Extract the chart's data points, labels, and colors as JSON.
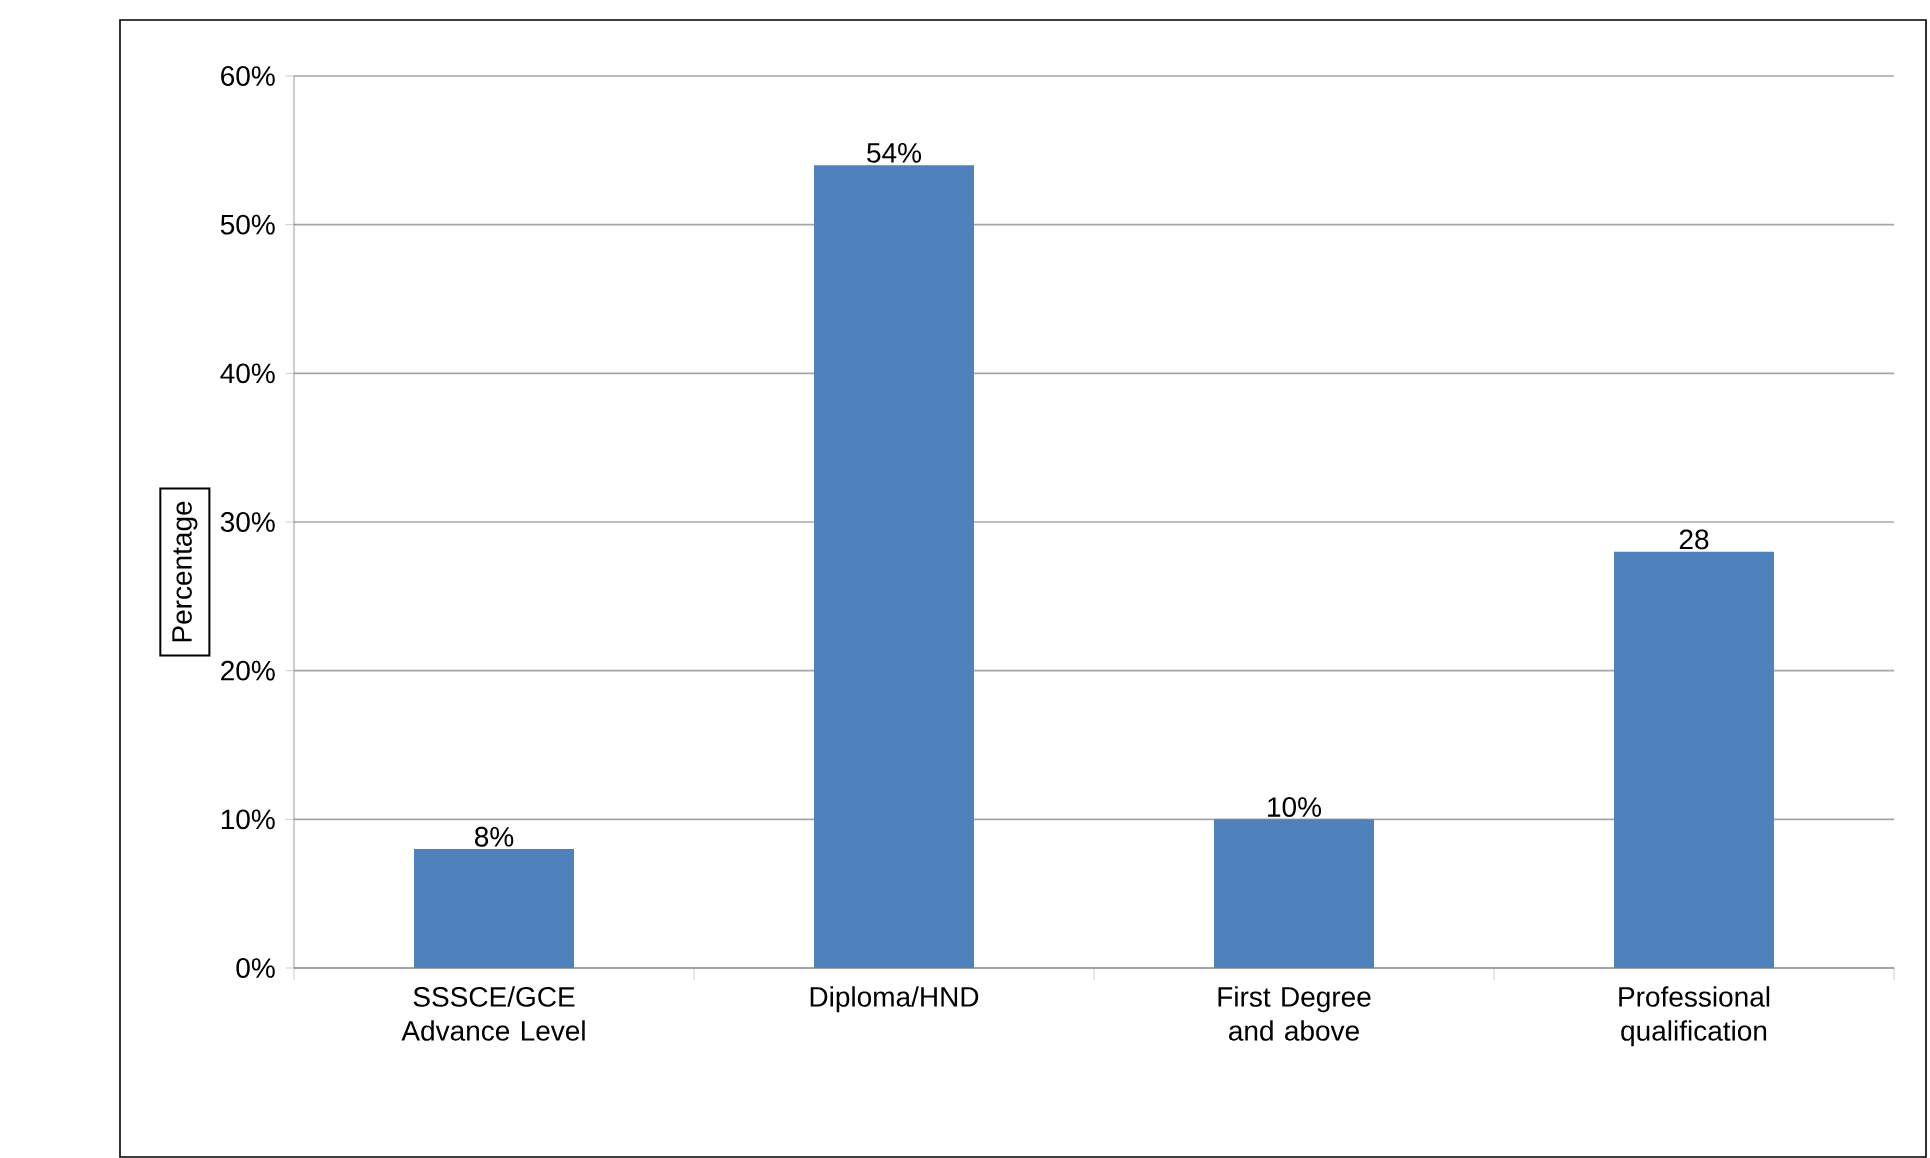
{
  "chart_data": {
    "type": "bar",
    "ylabel": "Percentage",
    "categories": [
      "SSSCE/GCE Advance Level",
      "Diploma/HND",
      "First Degree and above",
      "Professional qualification"
    ],
    "values": [
      8,
      54,
      10,
      28
    ],
    "value_labels": [
      "8%",
      "54%",
      "10%",
      "28"
    ],
    "color": "#4f81bd",
    "ylim": [
      0,
      60
    ],
    "yticks": [
      {
        "value": 0,
        "label": "0%"
      },
      {
        "value": 10,
        "label": "10%"
      },
      {
        "value": 20,
        "label": "20%"
      },
      {
        "value": 30,
        "label": "30%"
      },
      {
        "value": 40,
        "label": "40%"
      },
      {
        "value": 50,
        "label": "50%"
      },
      {
        "value": 60,
        "label": "60%"
      }
    ],
    "grid": "y"
  }
}
